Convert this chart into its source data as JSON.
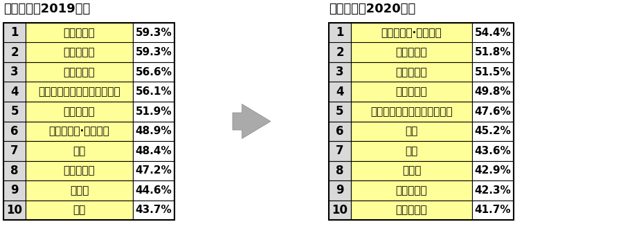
{
  "title_left": "第１７次（2019年）",
  "title_right": "第１８次（2020年）",
  "left_table": {
    "ranks": [
      "1",
      "2",
      "3",
      "4",
      "5",
      "6",
      "7",
      "8",
      "9",
      "10"
    ],
    "labels": [
      "作業療法士",
      "言語聴覚士",
      "理学療法士",
      "レクリエーショントレーナー",
      "地域連携室",
      "介護医療院·ケアマネ",
      "入浴",
      "介護福祉士",
      "看護師",
      "医師"
    ],
    "values": [
      "59.3%",
      "59.3%",
      "56.6%",
      "56.1%",
      "51.9%",
      "48.9%",
      "48.4%",
      "47.2%",
      "44.6%",
      "43.7%"
    ]
  },
  "right_table": {
    "ranks": [
      "1",
      "2",
      "3",
      "4",
      "5",
      "6",
      "7",
      "8",
      "9",
      "10"
    ],
    "labels": [
      "介護医療院·ケアマネ",
      "作業療法士",
      "言語聴覚士",
      "理学療法士",
      "レクリエーショントレーナー",
      "入浴",
      "医師",
      "看護師",
      "介護福祉士",
      "管理栄養士"
    ],
    "values": [
      "54.4%",
      "51.8%",
      "51.5%",
      "49.8%",
      "47.6%",
      "45.2%",
      "43.6%",
      "42.9%",
      "42.3%",
      "41.7%"
    ]
  },
  "cell_bg_yellow": "#FFFF99",
  "cell_bg_gray": "#D9D9D9",
  "cell_bg_white": "#FFFFFF",
  "border_color": "#000000",
  "title_fontsize": 13,
  "cell_fontsize": 11,
  "arrow_color": "#AAAAAA"
}
